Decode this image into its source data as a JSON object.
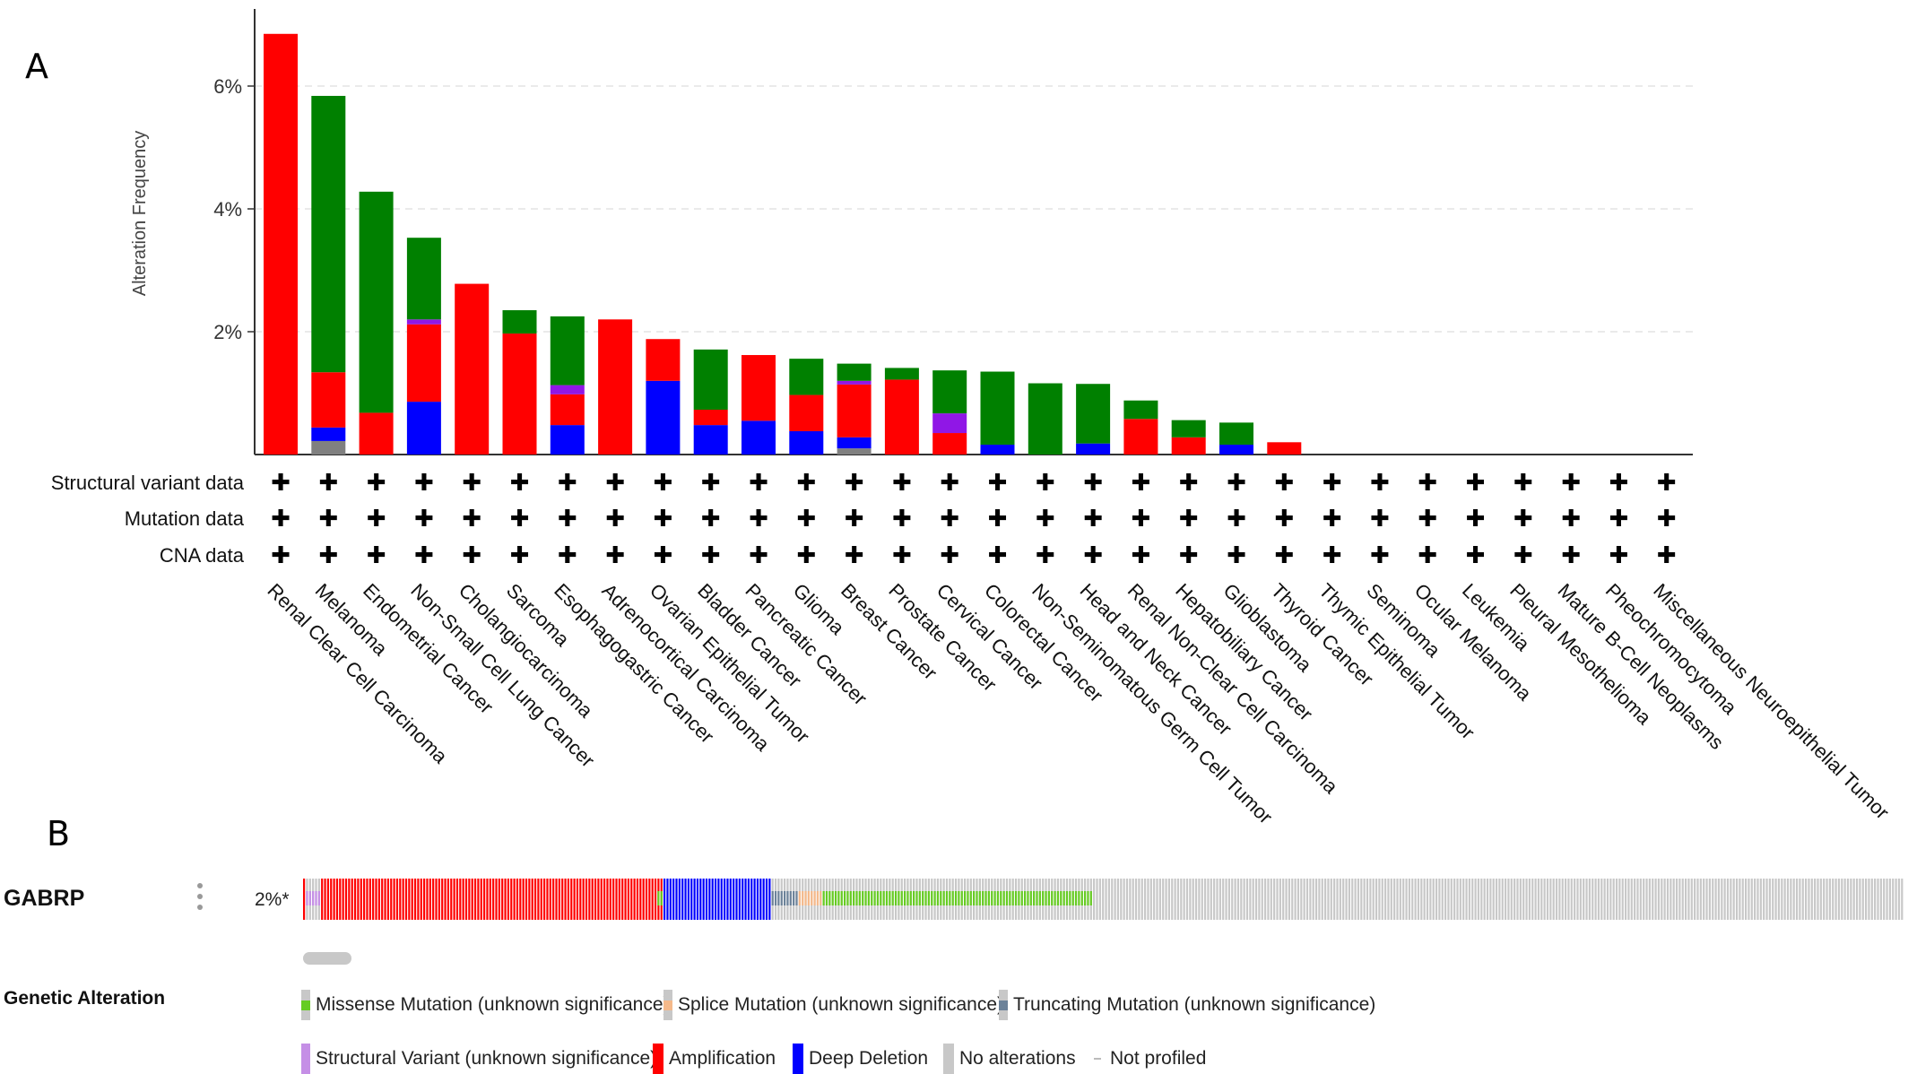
{
  "panel_a": {
    "letter": "A"
  },
  "panel_b": {
    "letter": "B"
  },
  "chart_data": {
    "type": "bar",
    "stacked": true,
    "ylabel": "Alteration Frequency",
    "ylim": [
      0,
      7
    ],
    "yticks": [
      2,
      4,
      6
    ],
    "ytick_labels": [
      "2%",
      "4%",
      "6%"
    ],
    "grid": "horizontal dashed",
    "categories": [
      "Renal Clear Cell Carcinoma",
      "Melanoma",
      "Endometrial Cancer",
      "Non-Small Cell Lung Cancer",
      "Cholangiocarcinoma",
      "Sarcoma",
      "Esophagogastric Cancer",
      "Adrenocortical Carcinoma",
      "Ovarian Epithelial Tumor",
      "Bladder Cancer",
      "Pancreatic Cancer",
      "Glioma",
      "Breast Cancer",
      "Prostate Cancer",
      "Cervical Cancer",
      "Colorectal Cancer",
      "Non-Seminomatous Germ Cell Tumor",
      "Head and Neck Cancer",
      "Renal Non-Clear Cell Carcinoma",
      "Hepatobiliary Cancer",
      "Glioblastoma",
      "Thyroid Cancer",
      "Thymic Epithelial Tumor",
      "Seminoma",
      "Ocular Melanoma",
      "Leukemia",
      "Pleural Mesothelioma",
      "Mature B-Cell Neoplasms",
      "Pheochromocytoma",
      "Miscellaneous Neuroepithelial Tumor"
    ],
    "series": [
      {
        "color": "#808080",
        "values": [
          0,
          0.22,
          0,
          0,
          0,
          0,
          0,
          0,
          0,
          0,
          0,
          0,
          0.1,
          0,
          0,
          0,
          0,
          0,
          0,
          0,
          0,
          0,
          0,
          0,
          0,
          0,
          0,
          0,
          0,
          0
        ]
      },
      {
        "color": "#0000ff",
        "values": [
          0,
          0.22,
          0,
          0.86,
          0,
          0,
          0.48,
          0,
          1.2,
          0.48,
          0.55,
          0.38,
          0.18,
          0,
          0,
          0.16,
          0,
          0.18,
          0,
          0,
          0.16,
          0,
          0,
          0,
          0,
          0,
          0,
          0,
          0,
          0
        ]
      },
      {
        "color": "#ff0000",
        "values": [
          6.85,
          0.9,
          0.68,
          1.26,
          2.78,
          1.97,
          0.5,
          2.2,
          0.68,
          0.25,
          1.07,
          0.59,
          0.86,
          1.22,
          0.35,
          0,
          0,
          0,
          0.58,
          0.28,
          0,
          0.2,
          0,
          0,
          0,
          0,
          0,
          0,
          0,
          0
        ]
      },
      {
        "color": "#9017e6",
        "values": [
          0,
          0,
          0,
          0.08,
          0,
          0,
          0.15,
          0,
          0,
          0,
          0,
          0,
          0.06,
          0,
          0.32,
          0,
          0,
          0,
          0,
          0,
          0,
          0,
          0,
          0,
          0,
          0,
          0,
          0,
          0,
          0
        ]
      },
      {
        "color": "#008000",
        "values": [
          0,
          4.5,
          3.6,
          1.33,
          0,
          0.38,
          1.12,
          0,
          0,
          0.98,
          0,
          0.59,
          0.28,
          0.19,
          0.7,
          1.19,
          1.16,
          0.97,
          0.3,
          0.28,
          0.36,
          0,
          0,
          0,
          0,
          0,
          0,
          0,
          0,
          0
        ]
      }
    ],
    "profile_rows": [
      "Structural variant data",
      "Mutation data",
      "CNA data"
    ],
    "profile_marker": "✚"
  },
  "oncoprint": {
    "gene": "GABRP",
    "percent": "2%*",
    "legend_title": "Genetic Alteration",
    "legend": [
      {
        "label": "Missense Mutation (unknown significance)",
        "color": "#66cc22",
        "kind": "mutation"
      },
      {
        "label": "Splice Mutation (unknown significance)",
        "color": "#f5b98a",
        "kind": "mutation"
      },
      {
        "label": "Truncating Mutation (unknown significance)",
        "color": "#6c8299",
        "kind": "mutation"
      },
      {
        "label": "Structural Variant (unknown significance)",
        "color": "#c58fe6",
        "kind": "fusion"
      },
      {
        "label": "Amplification",
        "color": "#ff0000",
        "kind": "full"
      },
      {
        "label": "Deep Deletion",
        "color": "#0000ff",
        "kind": "full"
      },
      {
        "label": "No alterations",
        "color": "#c8c8c8",
        "kind": "full"
      },
      {
        "label": "Not profiled",
        "color": "#bbbbbb",
        "kind": "dash"
      }
    ]
  }
}
